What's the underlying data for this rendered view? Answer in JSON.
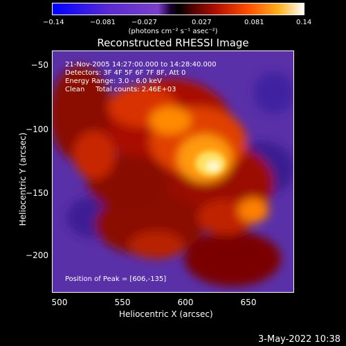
{
  "colorbar": {
    "ticks": [
      "−0.14",
      "−0.081",
      "−0.027",
      "0.027",
      "0.081",
      "0.14"
    ],
    "units": "(photons cm⁻² s⁻¹ asec⁻²)"
  },
  "plot": {
    "title": "Reconstructed RHESSI Image",
    "info_lines": [
      "21-Nov-2005 14:27:00.000 to 14:28:40.000",
      "Detectors: 3F 4F 5F 6F 7F 8F, Att 0",
      "Energy Range: 3.0 - 6.0 keV",
      "Clean     Total counts: 2.46E+03"
    ],
    "peak_label": "Position of Peak = [606,-135]",
    "xlabel": "Heliocentric X (arcsec)",
    "ylabel": "Heliocentric Y (arcsec)",
    "xticks": [
      "500",
      "550",
      "600",
      "650"
    ],
    "yticks": [
      "−50",
      "−100",
      "−150",
      "−200"
    ],
    "xlim": [
      495,
      687
    ],
    "ylim": [
      -230,
      -38
    ]
  },
  "footer": {
    "date": "3-May-2022 10:38"
  }
}
